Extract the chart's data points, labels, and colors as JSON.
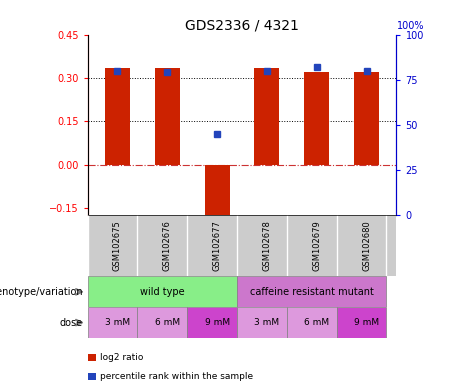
{
  "title": "GDS2336 / 4321",
  "samples": [
    "GSM102675",
    "GSM102676",
    "GSM102677",
    "GSM102678",
    "GSM102679",
    "GSM102680"
  ],
  "log2_ratio": [
    0.335,
    0.335,
    -0.175,
    0.335,
    0.32,
    0.32
  ],
  "percentile_rank_pct": [
    80,
    79,
    45,
    80,
    82,
    80
  ],
  "ylim_left": [
    -0.175,
    0.45
  ],
  "ylim_right": [
    0,
    100
  ],
  "left_ticks": [
    -0.15,
    0,
    0.15,
    0.3,
    0.45
  ],
  "right_ticks": [
    0,
    25,
    50,
    75,
    100
  ],
  "hlines": [
    0.15,
    0.3
  ],
  "bar_color": "#cc2200",
  "dot_color": "#2244bb",
  "zero_line_color": "#cc3333",
  "genotype_groups": [
    {
      "label": "wild type",
      "start": 0,
      "end": 3,
      "color": "#88ee88"
    },
    {
      "label": "caffeine resistant mutant",
      "start": 3,
      "end": 6,
      "color": "#cc77cc"
    }
  ],
  "dose_labels": [
    "3 mM",
    "6 mM",
    "9 mM",
    "3 mM",
    "6 mM",
    "9 mM"
  ],
  "dose_colors_light": "#dd99dd",
  "dose_colors_dark": "#cc44cc",
  "dose_dark_indices": [
    2,
    5
  ],
  "legend_bar_color": "#cc2200",
  "legend_dot_color": "#2244bb",
  "legend_bar_label": "log2 ratio",
  "legend_dot_label": "percentile rank within the sample",
  "genotype_label": "genotype/variation",
  "dose_label": "dose",
  "bar_width": 0.5,
  "title_fontsize": 10,
  "tick_fontsize": 7,
  "sample_bg_color": "#cccccc"
}
